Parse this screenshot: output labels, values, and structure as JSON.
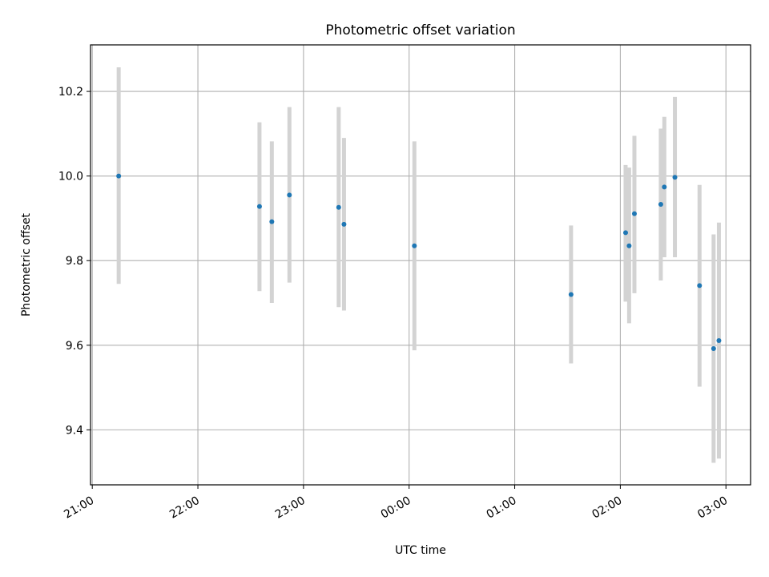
{
  "chart_data": {
    "type": "scatter",
    "title": "Photometric offset variation",
    "xlabel": "UTC time",
    "ylabel": "Photometric offset",
    "x_ticks": [
      "21:00",
      "22:00",
      "23:00",
      "00:00",
      "01:00",
      "02:00",
      "03:00"
    ],
    "y_ticks": [
      "9.4",
      "9.6",
      "9.8",
      "10.0",
      "10.2"
    ],
    "ylim": [
      9.27,
      10.31
    ],
    "xlim": [
      "20:59",
      "03:14"
    ],
    "grid": true,
    "colors": {
      "point": "#1f77b4",
      "errorbar": "#d3d3d3",
      "grid": "#b0b0b0"
    },
    "points": [
      {
        "time": "21:15",
        "y": 10.0,
        "ylow": 9.745,
        "yhigh": 10.257
      },
      {
        "time": "22:35",
        "y": 9.928,
        "ylow": 9.728,
        "yhigh": 10.127
      },
      {
        "time": "22:42",
        "y": 9.892,
        "ylow": 9.7,
        "yhigh": 10.082
      },
      {
        "time": "22:52",
        "y": 9.955,
        "ylow": 9.748,
        "yhigh": 10.163
      },
      {
        "time": "23:20",
        "y": 9.926,
        "ylow": 9.69,
        "yhigh": 10.163
      },
      {
        "time": "23:23",
        "y": 9.886,
        "ylow": 9.682,
        "yhigh": 10.09
      },
      {
        "time": "00:03",
        "y": 9.835,
        "ylow": 9.588,
        "yhigh": 10.082
      },
      {
        "time": "01:32",
        "y": 9.72,
        "ylow": 9.557,
        "yhigh": 9.883
      },
      {
        "time": "02:03",
        "y": 9.866,
        "ylow": 9.703,
        "yhigh": 10.026
      },
      {
        "time": "02:05",
        "y": 9.835,
        "ylow": 9.652,
        "yhigh": 10.02
      },
      {
        "time": "02:08",
        "y": 9.911,
        "ylow": 9.723,
        "yhigh": 10.095
      },
      {
        "time": "02:23",
        "y": 9.933,
        "ylow": 9.753,
        "yhigh": 10.112
      },
      {
        "time": "02:25",
        "y": 9.974,
        "ylow": 9.808,
        "yhigh": 10.14
      },
      {
        "time": "02:31",
        "y": 9.997,
        "ylow": 9.808,
        "yhigh": 10.187
      },
      {
        "time": "02:45",
        "y": 9.741,
        "ylow": 9.502,
        "yhigh": 9.979
      },
      {
        "time": "02:53",
        "y": 9.592,
        "ylow": 9.322,
        "yhigh": 9.862
      },
      {
        "time": "02:56",
        "y": 9.611,
        "ylow": 9.332,
        "yhigh": 9.89
      }
    ]
  }
}
